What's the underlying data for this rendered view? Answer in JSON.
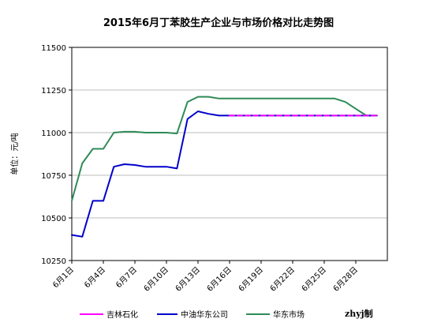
{
  "chart_data": {
    "type": "line",
    "title": "2015年6月丁苯胶生产企业与市场价格对比走势图",
    "ylabel": "单位：元/吨",
    "ylim": [
      10250,
      11500
    ],
    "yticks": [
      10250,
      10500,
      10750,
      11000,
      11250,
      11500
    ],
    "xlim": [
      1,
      31
    ],
    "xticks": [
      {
        "x": 1,
        "label": "6月1日"
      },
      {
        "x": 4,
        "label": "6月4日"
      },
      {
        "x": 7,
        "label": "6月7日"
      },
      {
        "x": 10,
        "label": "6月10日"
      },
      {
        "x": 13,
        "label": "6月13日"
      },
      {
        "x": 16,
        "label": "6月16日"
      },
      {
        "x": 19,
        "label": "6月19日"
      },
      {
        "x": 22,
        "label": "6月22日"
      },
      {
        "x": 25,
        "label": "6月25日"
      },
      {
        "x": 28,
        "label": "6月28日"
      }
    ],
    "grid": "horizontal",
    "legend_position": "bottom",
    "series": [
      {
        "name": "吉林石化",
        "color": "#ff00ff",
        "dashed": true,
        "x": [
          16,
          17,
          18,
          19,
          20,
          21,
          22,
          23,
          24,
          25,
          26,
          27,
          28,
          29,
          30
        ],
        "y": [
          11100,
          11100,
          11100,
          11100,
          11100,
          11100,
          11100,
          11100,
          11100,
          11100,
          11100,
          11100,
          11100,
          11100,
          11100
        ]
      },
      {
        "name": "中油华东公司",
        "color": "#0000cc",
        "x": [
          1,
          2,
          3,
          4,
          5,
          6,
          7,
          8,
          9,
          10,
          11,
          12,
          13,
          14,
          15,
          16,
          17,
          18,
          19,
          20,
          21,
          22,
          23,
          24,
          25,
          26,
          27,
          28,
          29,
          30
        ],
        "y": [
          10400,
          10390,
          10600,
          10600,
          10800,
          10815,
          10810,
          10800,
          10800,
          10800,
          10790,
          11080,
          11125,
          11110,
          11100,
          11100,
          11100,
          11100,
          11100,
          11100,
          11100,
          11100,
          11100,
          11100,
          11100,
          11100,
          11100,
          11100,
          11100,
          11100
        ]
      },
      {
        "name": "华东市场",
        "color": "#2e8b57",
        "x": [
          1,
          2,
          3,
          4,
          5,
          6,
          7,
          8,
          9,
          10,
          11,
          12,
          13,
          14,
          15,
          16,
          17,
          18,
          19,
          20,
          21,
          22,
          23,
          24,
          25,
          26,
          27,
          28,
          29,
          30
        ],
        "y": [
          10600,
          10820,
          10905,
          10905,
          11000,
          11005,
          11005,
          11000,
          11000,
          11000,
          10995,
          11180,
          11210,
          11210,
          11200,
          11200,
          11200,
          11200,
          11200,
          11200,
          11200,
          11200,
          11200,
          11200,
          11200,
          11200,
          11180,
          11140,
          11100,
          11100
        ]
      }
    ],
    "credit": "zhyj制"
  }
}
